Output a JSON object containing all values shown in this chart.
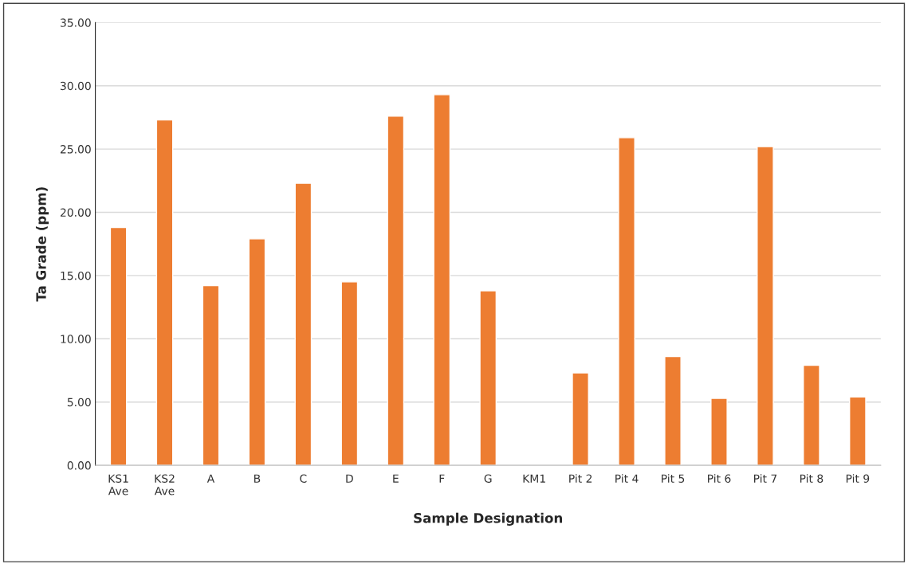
{
  "chart_data": {
    "type": "bar",
    "xlabel": "Sample Designation",
    "ylabel": "Ta Grade (ppm)",
    "categories": [
      "KS1\nAve",
      "KS2\nAve",
      "A",
      "B",
      "C",
      "D",
      "E",
      "F",
      "G",
      "KM1",
      "Pit 2",
      "Pit 4",
      "Pit 5",
      "Pit 6",
      "Pit 7",
      "Pit 8",
      "Pit 9"
    ],
    "values": [
      18.8,
      27.3,
      14.2,
      17.9,
      22.3,
      14.5,
      27.6,
      29.3,
      13.8,
      null,
      7.3,
      25.9,
      8.6,
      5.3,
      25.2,
      7.9,
      5.4
    ],
    "color": "#ed7d31",
    "ylim": [
      0,
      35
    ],
    "yticks": [
      {
        "value": 0,
        "label": "0.00"
      },
      {
        "value": 5,
        "label": "5.00"
      },
      {
        "value": 10,
        "label": "10.00"
      },
      {
        "value": 15,
        "label": "15.00"
      },
      {
        "value": 20,
        "label": "20.00"
      },
      {
        "value": 25,
        "label": "25.00"
      },
      {
        "value": 30,
        "label": "30.00"
      },
      {
        "value": 35,
        "label": "35.00"
      }
    ],
    "grid": "y"
  }
}
